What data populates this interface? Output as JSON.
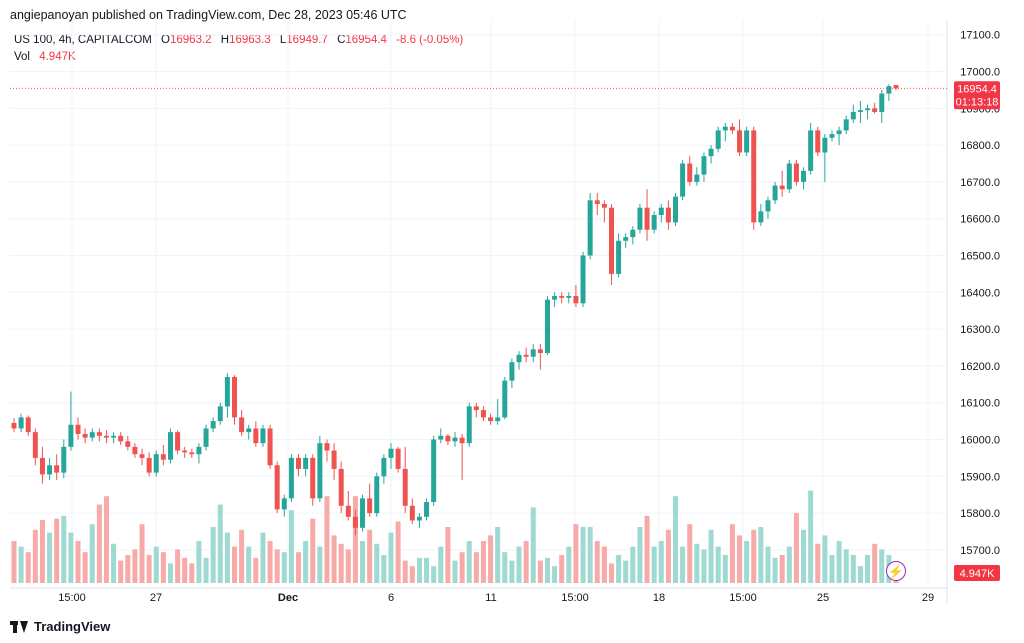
{
  "caption": "angiepanoyan published on TradingView.com, Dec 28, 2023 05:46 UTC",
  "legend": {
    "symbol": "US 100, 4h, CAPITALCOM",
    "o_label": "O",
    "o": "16963.2",
    "h_label": "H",
    "h": "16963.3",
    "l_label": "L",
    "l": "16949.7",
    "c_label": "C",
    "c": "16954.4",
    "change": "-8.6 (-0.05%)",
    "vol_label": "Vol",
    "vol": "4.947K"
  },
  "last_price": {
    "price": "16954.4",
    "countdown": "01:13:18"
  },
  "volume_badge": "4.947K",
  "footer": "TradingView",
  "colors": {
    "up": "#26a69a",
    "down": "#ef5350",
    "up_vol": "#9ed9d2",
    "down_vol": "#f7aaa8",
    "badge": "#f23645"
  },
  "chart_data": {
    "type": "candlestick",
    "ylim": [
      15610,
      17140
    ],
    "y_ticks": [
      "15700.0",
      "15800.0",
      "15900.0",
      "16000.0",
      "16100.0",
      "16200.0",
      "16300.0",
      "16400.0",
      "16500.0",
      "16600.0",
      "16700.0",
      "16800.0",
      "16900.0",
      "17000.0",
      "17100.0"
    ],
    "x_tick_labels": [
      "15:00",
      "27",
      "Dec",
      "6",
      "11",
      "15:00",
      "18",
      "15:00",
      "25",
      "29"
    ],
    "candles": [
      [
        16045,
        16058,
        16020,
        16030
      ],
      [
        16030,
        16070,
        16020,
        16060
      ],
      [
        16060,
        16065,
        16010,
        16020
      ],
      [
        16020,
        16030,
        15930,
        15950
      ],
      [
        15950,
        15980,
        15880,
        15905
      ],
      [
        15905,
        15950,
        15890,
        15930
      ],
      [
        15930,
        15960,
        15890,
        15910
      ],
      [
        15910,
        16000,
        15895,
        15980
      ],
      [
        15980,
        16130,
        15970,
        16040
      ],
      [
        16040,
        16060,
        16000,
        16015
      ],
      [
        16015,
        16030,
        15990,
        16005
      ],
      [
        16005,
        16030,
        15995,
        16020
      ],
      [
        16020,
        16030,
        15995,
        16010
      ],
      [
        16010,
        16025,
        15990,
        16005
      ],
      [
        16005,
        16020,
        15990,
        16010
      ],
      [
        16010,
        16020,
        15985,
        15995
      ],
      [
        15995,
        16010,
        15970,
        15980
      ],
      [
        15980,
        15990,
        15950,
        15960
      ],
      [
        15960,
        15975,
        15930,
        15950
      ],
      [
        15950,
        15965,
        15900,
        15910
      ],
      [
        15910,
        15970,
        15900,
        15960
      ],
      [
        15960,
        15985,
        15930,
        15945
      ],
      [
        15945,
        16030,
        15935,
        16020
      ],
      [
        16020,
        16025,
        15960,
        15970
      ],
      [
        15970,
        15980,
        15950,
        15965
      ],
      [
        15965,
        15975,
        15950,
        15960
      ],
      [
        15960,
        15990,
        15935,
        15980
      ],
      [
        15980,
        16040,
        15970,
        16030
      ],
      [
        16030,
        16060,
        16020,
        16050
      ],
      [
        16050,
        16100,
        16040,
        16090
      ],
      [
        16090,
        16180,
        16060,
        16170
      ],
      [
        16170,
        16175,
        16040,
        16060
      ],
      [
        16060,
        16080,
        16010,
        16020
      ],
      [
        16020,
        16040,
        16000,
        16030
      ],
      [
        16030,
        16050,
        15980,
        15990
      ],
      [
        15990,
        16040,
        15980,
        16030
      ],
      [
        16030,
        16040,
        15920,
        15930
      ],
      [
        15930,
        15940,
        15800,
        15810
      ],
      [
        15810,
        15850,
        15790,
        15840
      ],
      [
        15840,
        15960,
        15830,
        15950
      ],
      [
        15950,
        15960,
        15900,
        15920
      ],
      [
        15920,
        15960,
        15900,
        15950
      ],
      [
        15950,
        15960,
        15820,
        15840
      ],
      [
        15840,
        16010,
        15830,
        15990
      ],
      [
        15990,
        16000,
        15940,
        15970
      ],
      [
        15970,
        15990,
        15890,
        15920
      ],
      [
        15920,
        15940,
        15800,
        15820
      ],
      [
        15820,
        15860,
        15780,
        15790
      ],
      [
        15790,
        15810,
        15740,
        15760
      ],
      [
        15760,
        15850,
        15750,
        15840
      ],
      [
        15840,
        15880,
        15790,
        15800
      ],
      [
        15800,
        15910,
        15790,
        15900
      ],
      [
        15900,
        15960,
        15880,
        15950
      ],
      [
        15950,
        15990,
        15920,
        15975
      ],
      [
        15975,
        15980,
        15910,
        15920
      ],
      [
        15920,
        15980,
        15800,
        15820
      ],
      [
        15820,
        15840,
        15770,
        15780
      ],
      [
        15780,
        15800,
        15760,
        15790
      ],
      [
        15790,
        15840,
        15780,
        15830
      ],
      [
        15830,
        16010,
        15820,
        16000
      ],
      [
        16000,
        16030,
        15990,
        16010
      ],
      [
        16010,
        16015,
        15985,
        15995
      ],
      [
        15995,
        16020,
        15980,
        16005
      ],
      [
        16005,
        16015,
        15890,
        15990
      ],
      [
        15990,
        16100,
        15980,
        16090
      ],
      [
        16090,
        16100,
        16060,
        16080
      ],
      [
        16080,
        16090,
        16050,
        16060
      ],
      [
        16060,
        16070,
        16040,
        16050
      ],
      [
        16050,
        16110,
        16040,
        16060
      ],
      [
        16060,
        16170,
        16055,
        16160
      ],
      [
        16160,
        16220,
        16140,
        16210
      ],
      [
        16210,
        16240,
        16190,
        16230
      ],
      [
        16230,
        16250,
        16210,
        16225
      ],
      [
        16225,
        16260,
        16210,
        16245
      ],
      [
        16245,
        16260,
        16190,
        16235
      ],
      [
        16235,
        16390,
        16230,
        16380
      ],
      [
        16380,
        16400,
        16360,
        16390
      ],
      [
        16390,
        16400,
        16370,
        16385
      ],
      [
        16385,
        16400,
        16370,
        16390
      ],
      [
        16390,
        16420,
        16360,
        16370
      ],
      [
        16370,
        16510,
        16360,
        16500
      ],
      [
        16500,
        16670,
        16490,
        16650
      ],
      [
        16650,
        16670,
        16610,
        16640
      ],
      [
        16640,
        16650,
        16590,
        16630
      ],
      [
        16630,
        16640,
        16420,
        16450
      ],
      [
        16450,
        16560,
        16440,
        16540
      ],
      [
        16540,
        16560,
        16520,
        16550
      ],
      [
        16550,
        16580,
        16530,
        16570
      ],
      [
        16570,
        16640,
        16560,
        16630
      ],
      [
        16630,
        16680,
        16540,
        16570
      ],
      [
        16570,
        16620,
        16560,
        16610
      ],
      [
        16610,
        16640,
        16590,
        16630
      ],
      [
        16630,
        16650,
        16570,
        16590
      ],
      [
        16590,
        16670,
        16580,
        16660
      ],
      [
        16660,
        16760,
        16650,
        16750
      ],
      [
        16750,
        16770,
        16690,
        16700
      ],
      [
        16700,
        16740,
        16690,
        16720
      ],
      [
        16720,
        16780,
        16700,
        16770
      ],
      [
        16770,
        16800,
        16750,
        16790
      ],
      [
        16790,
        16850,
        16780,
        16840
      ],
      [
        16840,
        16860,
        16810,
        16850
      ],
      [
        16850,
        16860,
        16830,
        16840
      ],
      [
        16840,
        16870,
        16770,
        16780
      ],
      [
        16780,
        16850,
        16770,
        16840
      ],
      [
        16840,
        16850,
        16570,
        16590
      ],
      [
        16590,
        16640,
        16580,
        16620
      ],
      [
        16620,
        16660,
        16600,
        16650
      ],
      [
        16650,
        16700,
        16640,
        16690
      ],
      [
        16690,
        16730,
        16660,
        16680
      ],
      [
        16680,
        16760,
        16670,
        16750
      ],
      [
        16750,
        16760,
        16690,
        16700
      ],
      [
        16700,
        16740,
        16680,
        16730
      ],
      [
        16730,
        16860,
        16720,
        16840
      ],
      [
        16840,
        16850,
        16770,
        16780
      ],
      [
        16780,
        16830,
        16700,
        16820
      ],
      [
        16820,
        16840,
        16810,
        16830
      ],
      [
        16830,
        16850,
        16800,
        16840
      ],
      [
        16840,
        16880,
        16830,
        16870
      ],
      [
        16870,
        16910,
        16860,
        16890
      ],
      [
        16890,
        16920,
        16860,
        16895
      ],
      [
        16895,
        16910,
        16870,
        16900
      ],
      [
        16900,
        16915,
        16885,
        16890
      ],
      [
        16890,
        16950,
        16860,
        16940
      ],
      [
        16940,
        16965,
        16920,
        16960
      ],
      [
        16963.2,
        16963.3,
        16949.7,
        16954.4
      ]
    ],
    "volumes": [
      0.25,
      0.15,
      0.12,
      0.1,
      0.2,
      0.42,
      0.2,
      0.1,
      0.13,
      0.18,
      0.12,
      0.28,
      0.45,
      0.2,
      0.1,
      0.12,
      0.1,
      0.08,
      0.12,
      0.2,
      0.25,
      0.2,
      0.05,
      0.15,
      0.1,
      0.08,
      0.18,
      0.1,
      0.32,
      0.42,
      0.28,
      0.2,
      0.3,
      0.14,
      0.1,
      0.28,
      0.2,
      0.18,
      0.15,
      0.4,
      0.15,
      0.24,
      0.38,
      0.18,
      0.5,
      0.25,
      0.2,
      0.18,
      0.48,
      0.22,
      0.3,
      0.2,
      0.15,
      0.28,
      0.35,
      0.1,
      0.08,
      0.12,
      0.12,
      0.06,
      0.18,
      0.3,
      0.1,
      0.14,
      0.2,
      0.14,
      0.22,
      0.24,
      0.3,
      0.15,
      0.1,
      0.18,
      0.22,
      0.42,
      0.1,
      0.12,
      0.08,
      0.14,
      0.18,
      0.32,
      0.3,
      0.3,
      0.22,
      0.18,
      0.08,
      0.14,
      0.1,
      0.18,
      0.3,
      0.36,
      0.18,
      0.22,
      0.28,
      0.48,
      0.18,
      0.32,
      0.2,
      0.16,
      0.28,
      0.18,
      0.14,
      0.32,
      0.24,
      0.22,
      0.28,
      0.3,
      0.18,
      0.12,
      0.14,
      0.18,
      0.38,
      0.28,
      0.52,
      0.2,
      0.24,
      0.14,
      0.22,
      0.16,
      0.14,
      0.08,
      0.14,
      0.2,
      0.16,
      0.14,
      0.08,
      0.18,
      0.14,
      0.2,
      0.36,
      0.24,
      0.18,
      0.26,
      0.1,
      0.16,
      0.14,
      0.08,
      0.24,
      0.12
    ],
    "volume_heights_rel": [
      0.3,
      0.26,
      0.22,
      0.38,
      0.45,
      0.36,
      0.46,
      0.48,
      0.36,
      0.3,
      0.22,
      0.42,
      0.56,
      0.62,
      0.28,
      0.16,
      0.2,
      0.24,
      0.42,
      0.2,
      0.26,
      0.22,
      0.14,
      0.24,
      0.18,
      0.14,
      0.3,
      0.18,
      0.4,
      0.56,
      0.36,
      0.26,
      0.38,
      0.26,
      0.18,
      0.36,
      0.3,
      0.24,
      0.22,
      0.52,
      0.22,
      0.3,
      0.46,
      0.26,
      0.62,
      0.34,
      0.28,
      0.24,
      0.62,
      0.3,
      0.38,
      0.28,
      0.2,
      0.36,
      0.44,
      0.16,
      0.12,
      0.18,
      0.18,
      0.12,
      0.26,
      0.4,
      0.16,
      0.22,
      0.3,
      0.22,
      0.3,
      0.34,
      0.4,
      0.22,
      0.16,
      0.26,
      0.3,
      0.54,
      0.16,
      0.18,
      0.12,
      0.2,
      0.26,
      0.42,
      0.4,
      0.4,
      0.3,
      0.26,
      0.14,
      0.2,
      0.16,
      0.26,
      0.4,
      0.48,
      0.26,
      0.3,
      0.38,
      0.62,
      0.26,
      0.42,
      0.28,
      0.24,
      0.38,
      0.26,
      0.2,
      0.42,
      0.34,
      0.3,
      0.38,
      0.4,
      0.26,
      0.18,
      0.2,
      0.26,
      0.5,
      0.38,
      0.66,
      0.28,
      0.34,
      0.2,
      0.3,
      0.24,
      0.2,
      0.12,
      0.2,
      0.28,
      0.24,
      0.2,
      0.12,
      0.26,
      0.2,
      0.28,
      0.48,
      0.34,
      0.26,
      0.36,
      0.16,
      0.24,
      0.2,
      0.12,
      0.34,
      0.18
    ]
  }
}
